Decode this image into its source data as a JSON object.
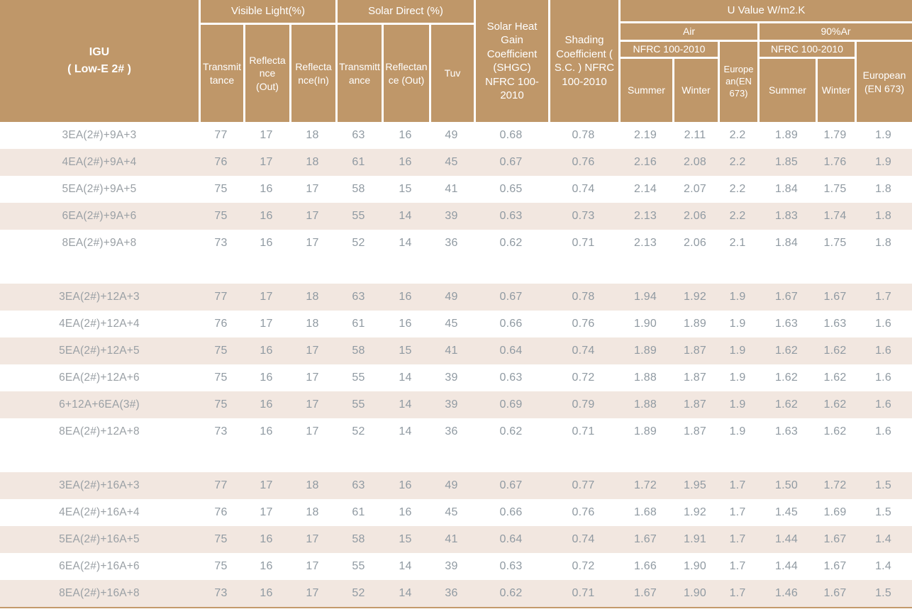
{
  "colors": {
    "header_bg": "#bf9769",
    "stripe_bg": "#f2e7e0",
    "value_text": "#909aa2",
    "label_text": "#9aa0a5",
    "header_text": "#ffffff",
    "bottom_border": "#c49a6b",
    "page_bg": "#ffffff"
  },
  "header": {
    "igu_line1": "IGU",
    "igu_line2": "( Low-E 2# )",
    "visible_light": "Visible Light(%)",
    "solar_direct": "Solar Direct (%)",
    "transmittance": "Transmittance",
    "reflectance_out": "Reflectance (Out)",
    "reflectance_in": "Reflectance(In)",
    "tuv": "Tuv",
    "shgc": "Solar Heat Gain Coefficient (SHGC) NFRC 100-2010",
    "shading_coefficient": "Shading Coefficient ( S.C. ) NFRC 100-2010",
    "u_value": "U Value W/m2.K",
    "air": "Air",
    "argon": "90%Ar",
    "nfrc": "NFRC 100-2010",
    "summer": "Summer",
    "winter": "Winter",
    "european_air": "European(EN 673)",
    "european_argon": "European (EN 673)"
  },
  "table": {
    "rows": [
      {
        "label": "3EA(2#)+9A+3",
        "shaded": false,
        "values": [
          "77",
          "17",
          "18",
          "63",
          "16",
          "49",
          "0.68",
          "0.78",
          "2.19",
          "2.11",
          "2.2",
          "1.89",
          "1.79",
          "1.9"
        ]
      },
      {
        "label": "4EA(2#)+9A+4",
        "shaded": true,
        "values": [
          "76",
          "17",
          "18",
          "61",
          "16",
          "45",
          "0.67",
          "0.76",
          "2.16",
          "2.08",
          "2.2",
          "1.85",
          "1.76",
          "1.9"
        ]
      },
      {
        "label": "5EA(2#)+9A+5",
        "shaded": false,
        "values": [
          "75",
          "16",
          "17",
          "58",
          "15",
          "41",
          "0.65",
          "0.74",
          "2.14",
          "2.07",
          "2.2",
          "1.84",
          "1.75",
          "1.8"
        ]
      },
      {
        "label": "6EA(2#)+9A+6",
        "shaded": true,
        "values": [
          "75",
          "16",
          "17",
          "55",
          "14",
          "39",
          "0.63",
          "0.73",
          "2.13",
          "2.06",
          "2.2",
          "1.83",
          "1.74",
          "1.8"
        ]
      },
      {
        "label": "8EA(2#)+9A+8",
        "shaded": false,
        "values": [
          "73",
          "16",
          "17",
          "52",
          "14",
          "36",
          "0.62",
          "0.71",
          "2.13",
          "2.06",
          "2.1",
          "1.84",
          "1.75",
          "1.8"
        ]
      },
      {
        "spacer": true
      },
      {
        "label": "3EA(2#)+12A+3",
        "shaded": true,
        "values": [
          "77",
          "17",
          "18",
          "63",
          "16",
          "49",
          "0.67",
          "0.78",
          "1.94",
          "1.92",
          "1.9",
          "1.67",
          "1.67",
          "1.7"
        ]
      },
      {
        "label": "4EA(2#)+12A+4",
        "shaded": false,
        "values": [
          "76",
          "17",
          "18",
          "61",
          "16",
          "45",
          "0.66",
          "0.76",
          "1.90",
          "1.89",
          "1.9",
          "1.63",
          "1.63",
          "1.6"
        ]
      },
      {
        "label": "5EA(2#)+12A+5",
        "shaded": true,
        "values": [
          "75",
          "16",
          "17",
          "58",
          "15",
          "41",
          "0.64",
          "0.74",
          "1.89",
          "1.87",
          "1.9",
          "1.62",
          "1.62",
          "1.6"
        ]
      },
      {
        "label": "6EA(2#)+12A+6",
        "shaded": false,
        "values": [
          "75",
          "16",
          "17",
          "55",
          "14",
          "39",
          "0.63",
          "0.72",
          "1.88",
          "1.87",
          "1.9",
          "1.62",
          "1.62",
          "1.6"
        ]
      },
      {
        "label": "6+12A+6EA(3#)",
        "shaded": true,
        "values": [
          "75",
          "16",
          "17",
          "55",
          "14",
          "39",
          "0.69",
          "0.79",
          "1.88",
          "1.87",
          "1.9",
          "1.62",
          "1.62",
          "1.6"
        ]
      },
      {
        "label": "8EA(2#)+12A+8",
        "shaded": false,
        "values": [
          "73",
          "16",
          "17",
          "52",
          "14",
          "36",
          "0.62",
          "0.71",
          "1.89",
          "1.87",
          "1.9",
          "1.63",
          "1.62",
          "1.6"
        ]
      },
      {
        "spacer": true
      },
      {
        "label": "3EA(2#)+16A+3",
        "shaded": true,
        "values": [
          "77",
          "17",
          "18",
          "63",
          "16",
          "49",
          "0.67",
          "0.77",
          "1.72",
          "1.95",
          "1.7",
          "1.50",
          "1.72",
          "1.5"
        ]
      },
      {
        "label": "4EA(2#)+16A+4",
        "shaded": false,
        "values": [
          "76",
          "17",
          "18",
          "61",
          "16",
          "45",
          "0.66",
          "0.76",
          "1.68",
          "1.92",
          "1.7",
          "1.45",
          "1.69",
          "1.5"
        ]
      },
      {
        "label": "5EA(2#)+16A+5",
        "shaded": true,
        "values": [
          "75",
          "16",
          "17",
          "58",
          "15",
          "41",
          "0.64",
          "0.74",
          "1.67",
          "1.91",
          "1.7",
          "1.44",
          "1.67",
          "1.4"
        ]
      },
      {
        "label": "6EA(2#)+16A+6",
        "shaded": false,
        "values": [
          "75",
          "16",
          "17",
          "55",
          "14",
          "39",
          "0.63",
          "0.72",
          "1.66",
          "1.90",
          "1.7",
          "1.44",
          "1.67",
          "1.4"
        ]
      },
      {
        "label": "8EA(2#)+16A+8",
        "shaded": true,
        "values": [
          "73",
          "16",
          "17",
          "52",
          "14",
          "36",
          "0.62",
          "0.71",
          "1.67",
          "1.90",
          "1.7",
          "1.46",
          "1.67",
          "1.5"
        ]
      }
    ]
  }
}
